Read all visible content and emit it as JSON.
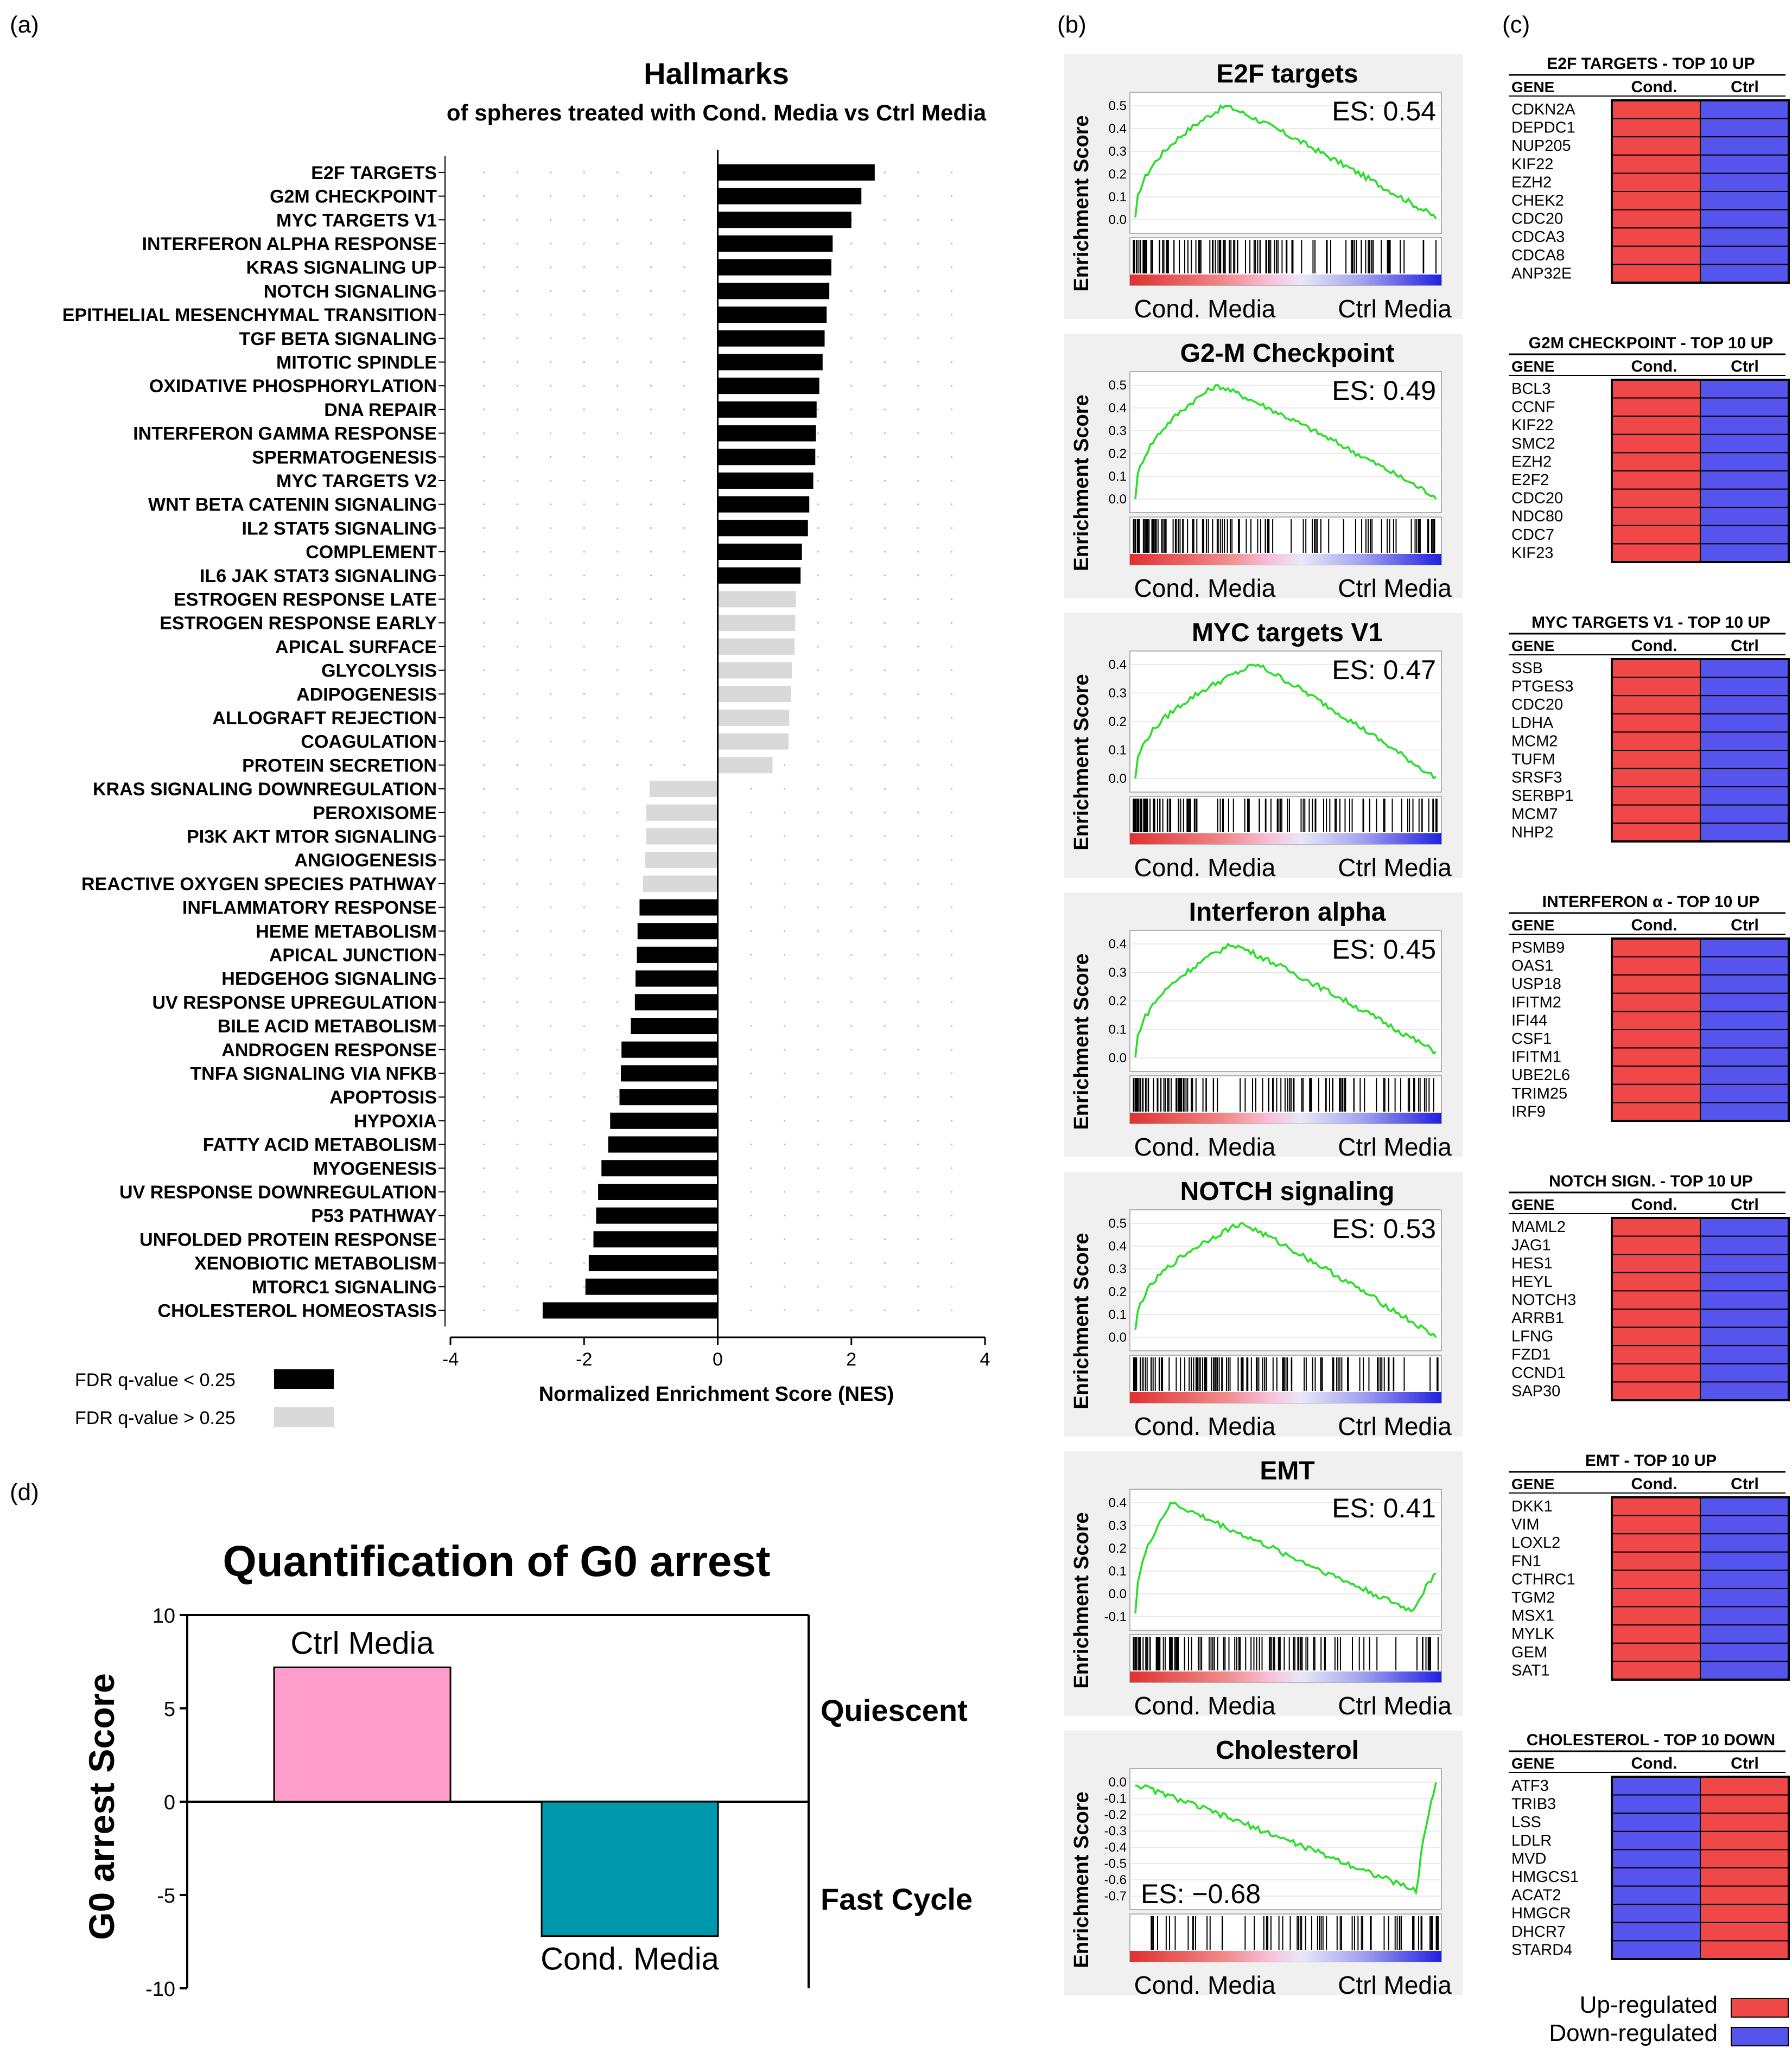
{
  "panels": {
    "a": "(a)",
    "b": "(b)",
    "c": "(c)",
    "d": "(d)"
  },
  "hallmarks": {
    "title": "Hallmarks",
    "subtitle": "of spheres treated with Cond. Media vs Ctrl Media",
    "legend_sig": "FDR q-value < 0.25",
    "legend_nonsig": "FDR q-value > 0.25",
    "color_sig": "#000000",
    "color_nonsig": "#d9d9d9"
  },
  "gsea": {
    "ylabel": "Enrichment Score",
    "left_label": "Cond. Media",
    "right_label": "Ctrl Media",
    "curve_color": "#22e022",
    "plots": [
      {
        "title": "E2F targets",
        "es": "ES: 0.54",
        "ticks": [
          "0.5",
          "0.4",
          "0.3",
          "0.2",
          "0.1",
          "0.0"
        ]
      },
      {
        "title": "G2-M Checkpoint",
        "es": "ES: 0.49",
        "ticks": [
          "0.5",
          "0.4",
          "0.3",
          "0.2",
          "0.1",
          "0.0"
        ]
      },
      {
        "title": "MYC targets V1",
        "es": "ES: 0.47",
        "ticks": [
          "0.4",
          "0.3",
          "0.2",
          "0.1",
          "0.0"
        ]
      },
      {
        "title": "Interferon alpha",
        "es": "ES: 0.45",
        "ticks": [
          "0.4",
          "0.3",
          "0.2",
          "0.1",
          "0.0"
        ]
      },
      {
        "title": "NOTCH signaling",
        "es": "ES: 0.53",
        "ticks": [
          "0.5",
          "0.4",
          "0.3",
          "0.2",
          "0.1",
          "0.0"
        ]
      },
      {
        "title": "EMT",
        "es": "ES: 0.41",
        "ticks": [
          "0.4",
          "0.3",
          "0.2",
          "0.1",
          "0.0",
          "-0.1"
        ]
      },
      {
        "title": "Cholesterol",
        "es": "ES: −0.68",
        "ticks": [
          "0.0",
          "-0.1",
          "-0.2",
          "-0.3",
          "-0.4",
          "-0.5",
          "-0.6",
          "-0.7"
        ]
      }
    ]
  },
  "heatmaps": {
    "gene_header": "GENE",
    "cond_header": "Cond.",
    "ctrl_header": "Ctrl",
    "up_color": "#f04848",
    "down_color": "#5555ee",
    "legend_up": "Up-regulated",
    "legend_down": "Down-regulated",
    "blocks": [
      {
        "title": "E2F TARGETS - TOP 10 UP",
        "direction": "up",
        "genes": [
          "CDKN2A",
          "DEPDC1",
          "NUP205",
          "KIF22",
          "EZH2",
          "CHEK2",
          "CDC20",
          "CDCA3",
          "CDCA8",
          "ANP32E"
        ]
      },
      {
        "title": "G2M CHECKPOINT - TOP 10 UP",
        "direction": "up",
        "genes": [
          "BCL3",
          "CCNF",
          "KIF22",
          "SMC2",
          "EZH2",
          "E2F2",
          "CDC20",
          "NDC80",
          "CDC7",
          "KIF23"
        ]
      },
      {
        "title": "MYC TARGETS V1 - TOP 10 UP",
        "direction": "up",
        "genes": [
          "SSB",
          "PTGES3",
          "CDC20",
          "LDHA",
          "MCM2",
          "TUFM",
          "SRSF3",
          "SERBP1",
          "MCM7",
          "NHP2"
        ]
      },
      {
        "title": "INTERFERON α - TOP 10 UP",
        "direction": "up",
        "genes": [
          "PSMB9",
          "OAS1",
          "USP18",
          "IFITM2",
          "IFI44",
          "CSF1",
          "IFITM1",
          "UBE2L6",
          "TRIM25",
          "IRF9"
        ]
      },
      {
        "title": "NOTCH SIGN. - TOP 10 UP",
        "direction": "up",
        "genes": [
          "MAML2",
          "JAG1",
          "HES1",
          "HEYL",
          "NOTCH3",
          "ARRB1",
          "LFNG",
          "FZD1",
          "CCND1",
          "SAP30"
        ]
      },
      {
        "title": "EMT - TOP 10 UP",
        "direction": "up",
        "genes": [
          "DKK1",
          "VIM",
          "LOXL2",
          "FN1",
          "CTHRC1",
          "TGM2",
          "MSX1",
          "MYLK",
          "GEM",
          "SAT1"
        ]
      },
      {
        "title": "CHOLESTEROL - TOP 10 DOWN",
        "direction": "down",
        "genes": [
          "ATF3",
          "TRIB3",
          "LSS",
          "LDLR",
          "MVD",
          "HMGCS1",
          "ACAT2",
          "HMGCR",
          "DHCR7",
          "STARD4"
        ]
      }
    ]
  },
  "g0": {
    "quiescent": "Quiescent",
    "fast_cycle": "Fast Cycle"
  },
  "chart_data": [
    {
      "type": "bar",
      "orientation": "horizontal",
      "title": "Hallmarks",
      "subtitle": "of spheres treated with Cond. Media vs Ctrl Media",
      "xlabel": "Normalized Enrichment Score (NES)",
      "xlim": [
        -4,
        4
      ],
      "xticks": [
        -4,
        -2,
        0,
        2,
        4
      ],
      "categories": [
        "E2F TARGETS",
        "G2M CHECKPOINT",
        "MYC TARGETS V1",
        "INTERFERON ALPHA RESPONSE",
        "KRAS SIGNALING UP",
        "NOTCH SIGNALING",
        "EPITHELIAL MESENCHYMAL TRANSITION",
        "TGF BETA SIGNALING",
        "MITOTIC SPINDLE",
        "OXIDATIVE PHOSPHORYLATION",
        "DNA REPAIR",
        "INTERFERON GAMMA RESPONSE",
        "SPERMATOGENESIS",
        "MYC TARGETS V2",
        "WNT BETA CATENIN SIGNALING",
        "IL2 STAT5 SIGNALING",
        "COMPLEMENT",
        "IL6 JAK STAT3 SIGNALING",
        "ESTROGEN RESPONSE LATE",
        "ESTROGEN RESPONSE EARLY",
        "APICAL SURFACE",
        "GLYCOLYSIS",
        "ADIPOGENESIS",
        "ALLOGRAFT REJECTION",
        "COAGULATION",
        "PROTEIN SECRETION",
        "KRAS SIGNALING DOWNREGULATION",
        "PEROXISOME",
        "PI3K AKT MTOR SIGNALING",
        "ANGIOGENESIS",
        "REACTIVE OXYGEN SPECIES PATHWAY",
        "INFLAMMATORY RESPONSE",
        "HEME METABOLISM",
        "APICAL JUNCTION",
        "HEDGEHOG SIGNALING",
        "UV RESPONSE UPREGULATION",
        "BILE ACID METABOLISM",
        "ANDROGEN RESPONSE",
        "TNFA SIGNALING VIA NFKB",
        "APOPTOSIS",
        "HYPOXIA",
        "FATTY ACID METABOLISM",
        "MYOGENESIS",
        "UV RESPONSE DOWNREGULATION",
        "P53 PATHWAY",
        "UNFOLDED PROTEIN RESPONSE",
        "XENOBIOTIC METABOLISM",
        "MTORC1 SIGNALING",
        "CHOLESTEROL HOMEOSTASIS"
      ],
      "values": [
        2.35,
        2.15,
        2.0,
        1.72,
        1.7,
        1.67,
        1.63,
        1.6,
        1.57,
        1.52,
        1.48,
        1.47,
        1.46,
        1.43,
        1.37,
        1.35,
        1.26,
        1.24,
        1.17,
        1.16,
        1.15,
        1.11,
        1.1,
        1.07,
        1.06,
        0.82,
        -1.02,
        -1.07,
        -1.07,
        -1.09,
        -1.12,
        -1.17,
        -1.2,
        -1.21,
        -1.23,
        -1.24,
        -1.3,
        -1.44,
        -1.45,
        -1.47,
        -1.61,
        -1.64,
        -1.74,
        -1.79,
        -1.82,
        -1.86,
        -1.93,
        -1.98,
        -2.62
      ],
      "significant": [
        true,
        true,
        true,
        true,
        true,
        true,
        true,
        true,
        true,
        true,
        true,
        true,
        true,
        true,
        true,
        true,
        true,
        true,
        false,
        false,
        false,
        false,
        false,
        false,
        false,
        false,
        false,
        false,
        false,
        false,
        false,
        true,
        true,
        true,
        true,
        true,
        true,
        true,
        true,
        true,
        true,
        true,
        true,
        true,
        true,
        true,
        true,
        true,
        true
      ]
    },
    {
      "type": "bar",
      "title": "Quantification of G0 arrest",
      "ylabel": "G0 arrest Score",
      "ylim": [
        -10,
        10
      ],
      "yticks": [
        10,
        5,
        0,
        -5,
        -10
      ],
      "categories": [
        "Ctrl Media",
        "Cond. Media"
      ],
      "values": [
        7.2,
        -7.2
      ],
      "colors": [
        "#ff9dcb",
        "#0098ac"
      ]
    }
  ]
}
